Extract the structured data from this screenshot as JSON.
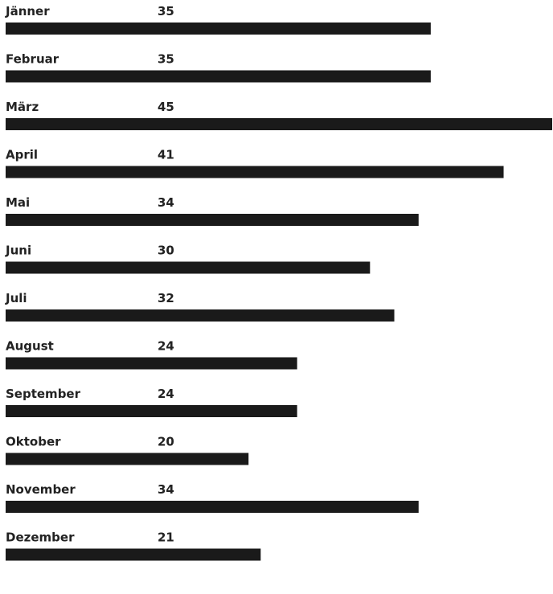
{
  "chart_data": {
    "type": "bar",
    "orientation": "horizontal",
    "categories": [
      "Jänner",
      "Februar",
      "März",
      "April",
      "Mai",
      "Juni",
      "Juli",
      "August",
      "September",
      "Oktober",
      "November",
      "Dezember"
    ],
    "values": [
      35,
      35,
      45,
      41,
      34,
      30,
      32,
      24,
      24,
      20,
      34,
      21
    ],
    "value_labels": [
      "35",
      "35",
      "45",
      "41",
      "34",
      "30",
      "32",
      "24",
      "24",
      "20",
      "34",
      "21"
    ],
    "xlim": [
      0,
      45
    ],
    "grid": false,
    "bar_color": "#1a1a1a"
  }
}
